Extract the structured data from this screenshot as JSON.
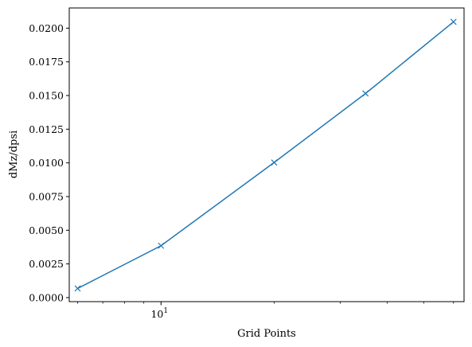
{
  "chart_data": {
    "type": "line",
    "title": "",
    "xlabel": "Grid Points",
    "ylabel": "dMz/dpsi",
    "xscale": "log",
    "grid": false,
    "x": [
      6,
      10,
      20,
      35,
      60
    ],
    "series": [
      {
        "values": [
          0.00068,
          0.00385,
          0.01003,
          0.01515,
          0.02047
        ],
        "color": "#1f77b4",
        "marker": "x"
      }
    ],
    "ylim": [
      -0.0003,
      0.0215
    ],
    "xlim": [
      5.7,
      64
    ],
    "yticks": [
      {
        "value": 0.0,
        "label": "0.0000"
      },
      {
        "value": 0.0025,
        "label": "0.0025"
      },
      {
        "value": 0.005,
        "label": "0.0050"
      },
      {
        "value": 0.0075,
        "label": "0.0075"
      },
      {
        "value": 0.01,
        "label": "0.0100"
      },
      {
        "value": 0.0125,
        "label": "0.0125"
      },
      {
        "value": 0.015,
        "label": "0.0150"
      },
      {
        "value": 0.0175,
        "label": "0.0175"
      },
      {
        "value": 0.02,
        "label": "0.0200"
      }
    ],
    "xticks_major": [
      {
        "value": 10,
        "base": "10",
        "exp": "1"
      }
    ],
    "xticks_minor": [
      6,
      7,
      8,
      9,
      20,
      30,
      40,
      50,
      60
    ]
  }
}
